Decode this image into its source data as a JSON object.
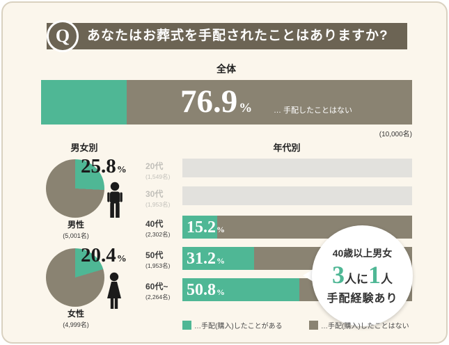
{
  "colors": {
    "green": "#4fb795",
    "taupe": "#8a8372",
    "header_bg": "#6c6454",
    "inactive_bar": "#e2e1dd",
    "card_bg": "#fbf6ec",
    "card_border": "#d9d1c0"
  },
  "header": {
    "q": "Q",
    "title": "あなたはお葬式を手配されたことはありますか?"
  },
  "overall": {
    "label": "全体",
    "value": "76.9",
    "unit": "%",
    "note": "… 手配したことはない",
    "sample": "(10,000名)",
    "yes_pct": 23.1
  },
  "gender": {
    "title": "男女別",
    "items": [
      {
        "label": "男性",
        "sample": "(5,001名)",
        "value": "25.8",
        "unit": "%",
        "pct": 25.8
      },
      {
        "label": "女性",
        "sample": "(4,999名)",
        "value": "20.4",
        "unit": "%",
        "pct": 20.4
      }
    ]
  },
  "age": {
    "title": "年代別",
    "rows": [
      {
        "label": "20代",
        "sample": "(1,549名)",
        "active": false
      },
      {
        "label": "30代",
        "sample": "(1,953名)",
        "active": false
      },
      {
        "label": "40代",
        "sample": "(2,302名)",
        "value": "15.2",
        "unit": "%",
        "pct": 15.2,
        "active": true
      },
      {
        "label": "50代",
        "sample": "(1,953名)",
        "value": "31.2",
        "unit": "%",
        "pct": 31.2,
        "active": true
      },
      {
        "label": "60代~",
        "sample": "(2,264名)",
        "value": "50.8",
        "unit": "%",
        "pct": 50.8,
        "active": true
      }
    ]
  },
  "badge": {
    "line1": "40歳以上男女",
    "big1": "3",
    "mid": "人に",
    "big2": "1",
    "tail": "人",
    "line3": "手配経験あり"
  },
  "legend": [
    {
      "label": "…手配(購入)したことがある",
      "color": "#4fb795"
    },
    {
      "label": "…手配(購入)したことはない",
      "color": "#8a8372"
    }
  ],
  "chart_data": [
    {
      "type": "bar",
      "title": "全体",
      "orientation": "horizontal",
      "stacked": true,
      "categories": [
        "全体"
      ],
      "sample_sizes": [
        "10,000名"
      ],
      "series": [
        {
          "name": "手配(購入)したことがある",
          "values": [
            23.1
          ],
          "color": "#4fb795"
        },
        {
          "name": "手配(購入)したことはない",
          "values": [
            76.9
          ],
          "color": "#8a8372"
        }
      ],
      "xlim": [
        0,
        100
      ]
    },
    {
      "type": "pie",
      "title": "男女別",
      "charts": [
        {
          "label": "男性",
          "sample_size": "5,001名",
          "slices": [
            {
              "name": "手配(購入)したことがある",
              "value": 25.8,
              "color": "#4fb795"
            },
            {
              "name": "手配(購入)したことはない",
              "value": 74.2,
              "color": "#8a8372"
            }
          ]
        },
        {
          "label": "女性",
          "sample_size": "4,999名",
          "slices": [
            {
              "name": "手配(購入)したことがある",
              "value": 20.4,
              "color": "#4fb795"
            },
            {
              "name": "手配(購入)したことはない",
              "value": 79.6,
              "color": "#8a8372"
            }
          ]
        }
      ]
    },
    {
      "type": "bar",
      "title": "年代別",
      "orientation": "horizontal",
      "stacked": true,
      "categories": [
        "20代",
        "30代",
        "40代",
        "50代",
        "60代~"
      ],
      "sample_sizes": [
        "1,549名",
        "1,953名",
        "2,302名",
        "1,953名",
        "2,264名"
      ],
      "series": [
        {
          "name": "手配(購入)したことがある",
          "values": [
            null,
            null,
            15.2,
            31.2,
            50.8
          ],
          "color": "#4fb795"
        }
      ],
      "xlim": [
        0,
        100
      ],
      "annotation": "40歳以上男女 3人に1人 手配経験あり"
    }
  ]
}
